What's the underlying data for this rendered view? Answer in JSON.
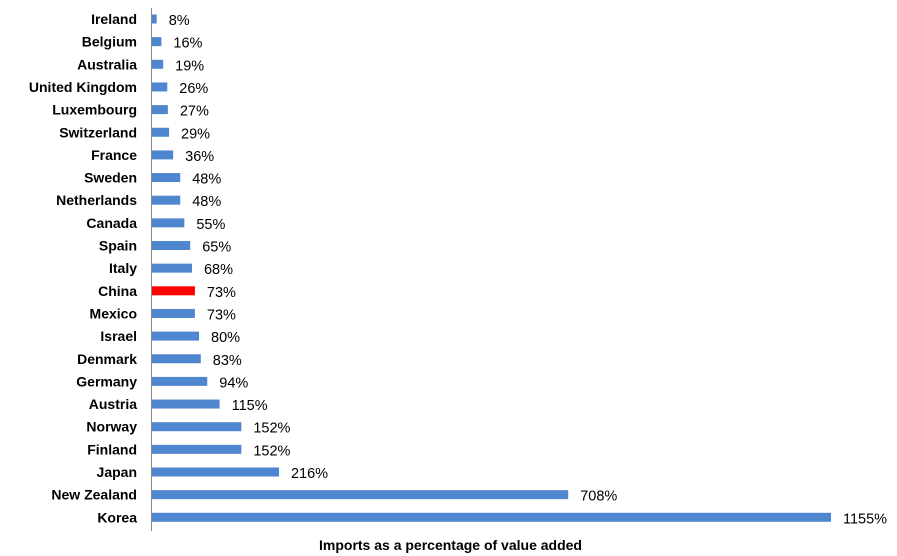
{
  "chart_data": {
    "type": "bar",
    "orientation": "horizontal",
    "title": "",
    "xlabel": "Imports as a percentage of value added",
    "ylabel": "",
    "xlim": [
      0,
      1155
    ],
    "grid": false,
    "legend": "none",
    "colors": {
      "default": "#4f86d0",
      "highlight": "#ff0000"
    },
    "highlight_category": "China",
    "categories": [
      "Ireland",
      "Belgium",
      "Australia",
      "United Kingdom",
      "Luxembourg",
      "Switzerland",
      "France",
      "Sweden",
      "Netherlands",
      "Canada",
      "Spain",
      "Italy",
      "China",
      "Mexico",
      "Israel",
      "Denmark",
      "Germany",
      "Austria",
      "Norway",
      "Finland",
      "Japan",
      "New Zealand",
      "Korea"
    ],
    "values": [
      8,
      16,
      19,
      26,
      27,
      29,
      36,
      48,
      48,
      55,
      65,
      68,
      73,
      73,
      80,
      83,
      94,
      115,
      152,
      152,
      216,
      708,
      1155
    ],
    "value_labels": [
      "8%",
      "16%",
      "19%",
      "26%",
      "27%",
      "29%",
      "36%",
      "48%",
      "48%",
      "55%",
      "65%",
      "68%",
      "73%",
      "73%",
      "80%",
      "83%",
      "94%",
      "115%",
      "152%",
      "152%",
      "216%",
      "708%",
      "1155%"
    ]
  }
}
